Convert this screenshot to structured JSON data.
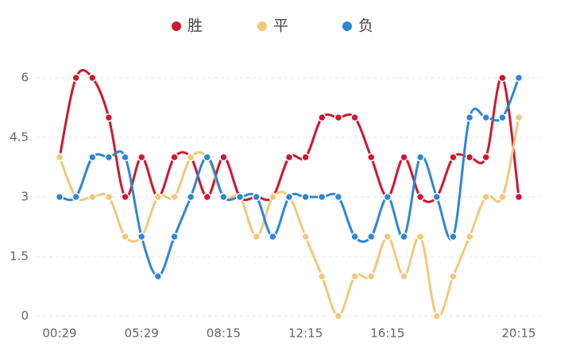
{
  "chart_data": {
    "type": "line",
    "categories": [
      "00:29",
      null,
      null,
      null,
      null,
      "05:29",
      null,
      null,
      null,
      null,
      "08:15",
      null,
      null,
      null,
      null,
      "12:15",
      null,
      null,
      null,
      null,
      "16:15",
      null,
      null,
      null,
      null,
      null,
      null,
      null,
      "20:15"
    ],
    "series": [
      {
        "name": "胜",
        "color": "#d0172f",
        "values": [
          4,
          6,
          6,
          5,
          3,
          4,
          3,
          4,
          4,
          3,
          4,
          3,
          3,
          3,
          4,
          4,
          5,
          5,
          5,
          4,
          3,
          4,
          3,
          3,
          4,
          4,
          4,
          6,
          3
        ]
      },
      {
        "name": "平",
        "color": "#f4c77a",
        "values": [
          4,
          3,
          3,
          3,
          2,
          2,
          3,
          3,
          4,
          4,
          3,
          3,
          2,
          3,
          3,
          2,
          1,
          0,
          1,
          1,
          2,
          1,
          2,
          0,
          1,
          2,
          3,
          3,
          5
        ]
      },
      {
        "name": "负",
        "color": "#2e86d9",
        "values": [
          3,
          3,
          4,
          4,
          4,
          2,
          1,
          2,
          3,
          4,
          3,
          3,
          3,
          2,
          3,
          3,
          3,
          3,
          2,
          2,
          3,
          2,
          4,
          3,
          2,
          5,
          5,
          5,
          6
        ]
      }
    ],
    "ylim": [
      0,
      6
    ],
    "yticks": [
      0,
      1.5,
      3,
      4.5,
      6
    ],
    "grid": true
  }
}
